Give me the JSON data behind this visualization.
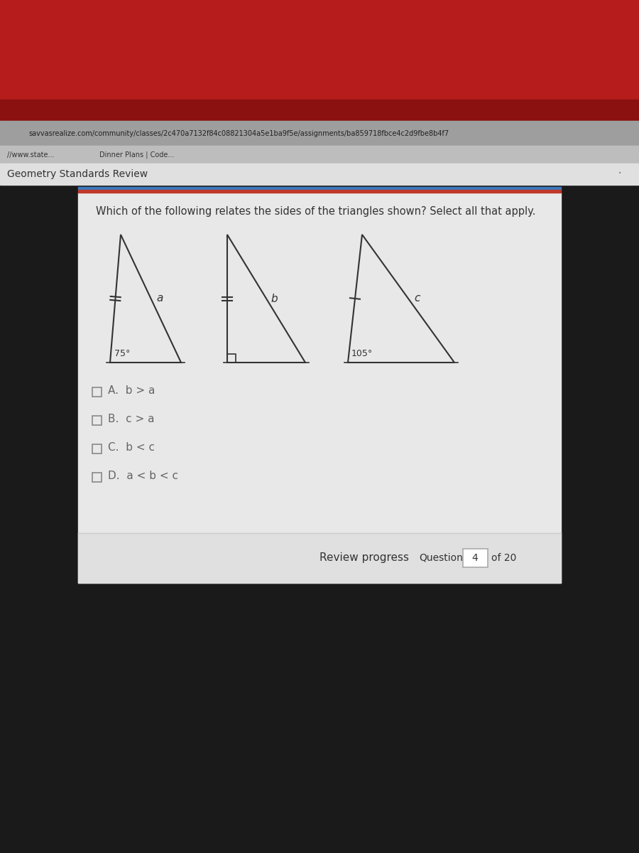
{
  "title": "Geometry Standards Review",
  "question": "Which of the following relates the sides of the triangles shown? Select all that apply.",
  "tab_bar_color": "#b71c1c",
  "tab_bar_color2": "#8b1010",
  "url_bar_color": "#9e9e9e",
  "bookmarks_color": "#bdbdbd",
  "header_bar_color": "#e0e0e0",
  "content_bg": "#e8e8e8",
  "content_bg2": "#efefef",
  "dark_bg": "#1a1a1a",
  "separator_blue": "#3a7abf",
  "separator_red": "#c0392b",
  "choices": [
    "A.  b > a",
    "B.  c > a",
    "C.  b < c",
    "D.  a < b < c"
  ],
  "footer_text": "Review progress",
  "footer_question": "Question",
  "footer_q_num": "4",
  "footer_q_total": "of 20"
}
